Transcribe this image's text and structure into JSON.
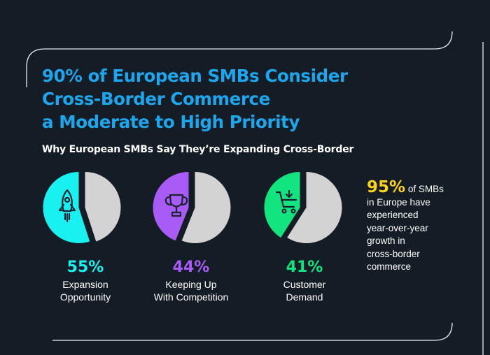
{
  "colors": {
    "background": "#141c25",
    "title": "#1ea6ec",
    "grey_slice": "#d3d3d3",
    "highlight": "#ffd21f"
  },
  "title_lines": [
    "90% of European SMBs Consider",
    "Cross-Border Commerce",
    "a Moderate to High Priority"
  ],
  "subtitle": "Why European SMBs Say They’re Expanding Cross-Border",
  "chart_data": {
    "type": "pie",
    "title": "Why European SMBs Say They’re Expanding Cross-Border",
    "unit": "%",
    "series": [
      {
        "name": "Expansion Opportunity",
        "value": 55,
        "label": "55%",
        "caption_lines": [
          "Expansion",
          "Opportunity"
        ],
        "color": "#19f0f0",
        "icon": "rocket-icon"
      },
      {
        "name": "Keeping Up With Competition",
        "value": 44,
        "label": "44%",
        "caption_lines": [
          "Keeping Up",
          "With Competition"
        ],
        "color": "#a85cf5",
        "icon": "trophy-icon"
      },
      {
        "name": "Customer Demand",
        "value": 41,
        "label": "41%",
        "caption_lines": [
          "Customer",
          "Demand"
        ],
        "color": "#12e57f",
        "icon": "shopping-cart-icon"
      }
    ]
  },
  "callout": {
    "value": "95%",
    "lead": " of SMBs",
    "lines": [
      "in Europe have",
      "experienced",
      "year-over-year",
      "growth in",
      "cross-border",
      "commerce"
    ]
  }
}
